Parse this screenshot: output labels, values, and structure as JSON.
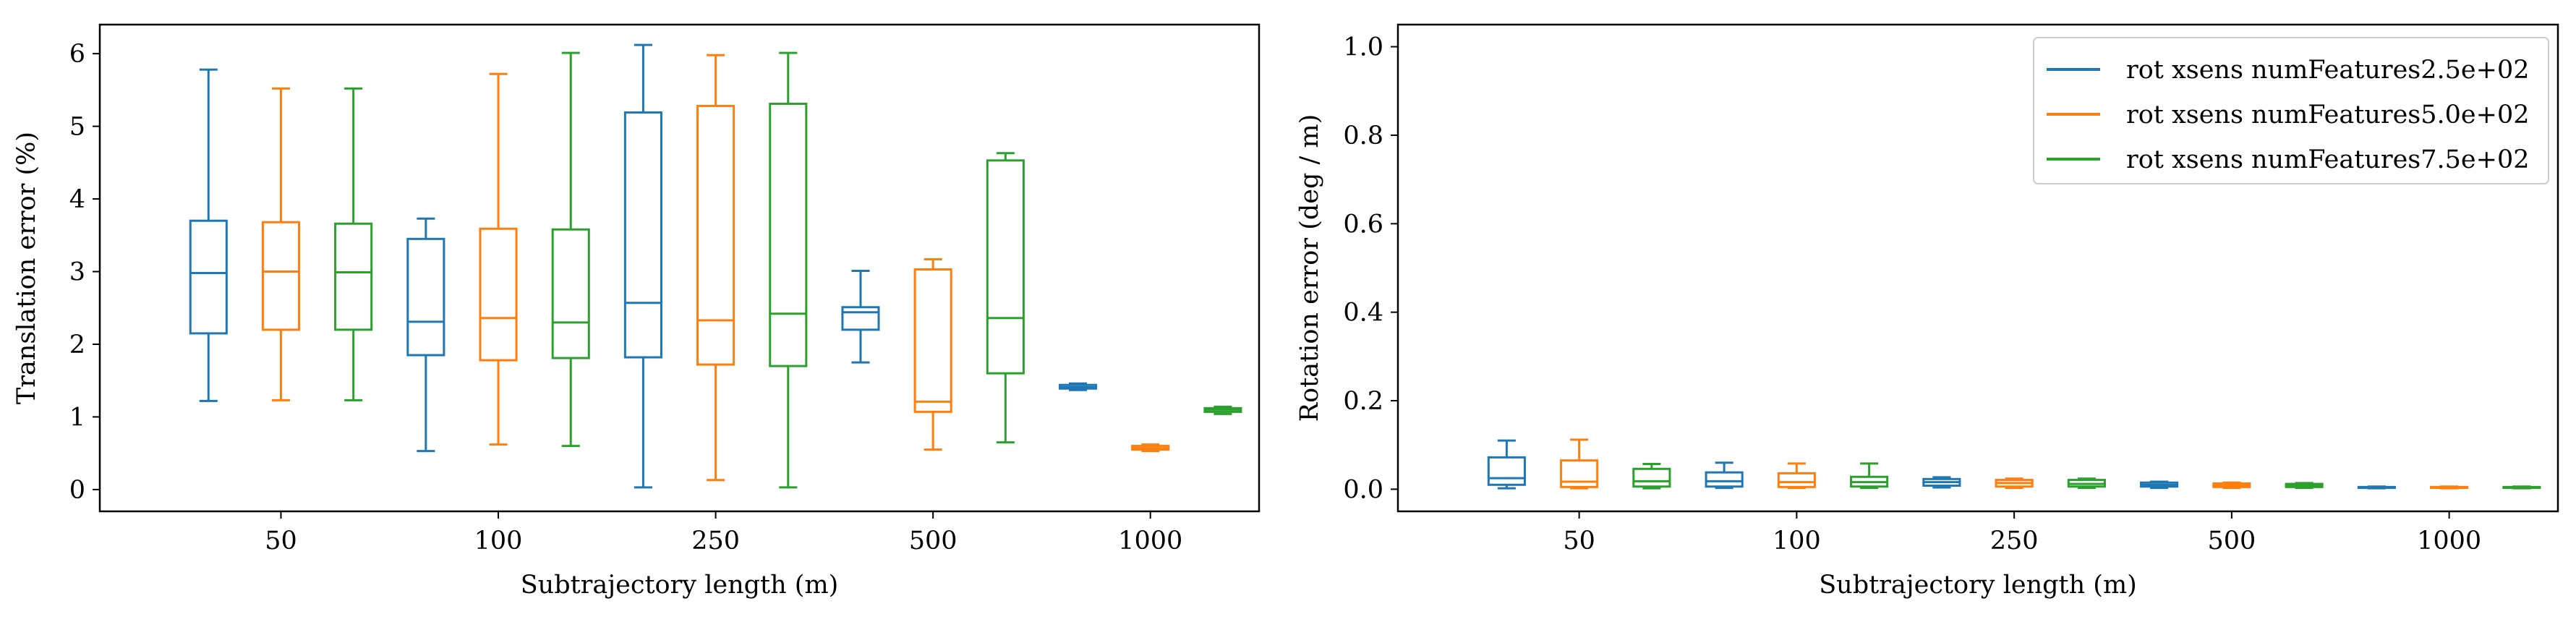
{
  "chart_data": [
    {
      "type": "box",
      "xlabel": "Subtrajectory length (m)",
      "ylabel": "Translation error (%)",
      "ylim": [
        -0.3,
        6.4
      ],
      "yticks": [
        0,
        1,
        2,
        3,
        4,
        5,
        6
      ],
      "categories": [
        "50",
        "100",
        "250",
        "500",
        "1000"
      ],
      "grid": false,
      "series": [
        {
          "color": "#1f77b4",
          "boxes": [
            {
              "whislo": 1.22,
              "q1": 2.15,
              "med": 2.98,
              "q3": 3.7,
              "whishi": 5.78
            },
            {
              "whislo": 0.53,
              "q1": 1.85,
              "med": 2.31,
              "q3": 3.45,
              "whishi": 3.73
            },
            {
              "whislo": 0.03,
              "q1": 1.82,
              "med": 2.57,
              "q3": 5.19,
              "whishi": 6.12
            },
            {
              "whislo": 1.75,
              "q1": 2.2,
              "med": 2.44,
              "q3": 2.51,
              "whishi": 3.01
            },
            {
              "whislo": 1.37,
              "q1": 1.39,
              "med": 1.41,
              "q3": 1.44,
              "whishi": 1.46
            }
          ]
        },
        {
          "color": "#ff7f0e",
          "boxes": [
            {
              "whislo": 1.23,
              "q1": 2.2,
              "med": 3.0,
              "q3": 3.68,
              "whishi": 5.52
            },
            {
              "whislo": 0.62,
              "q1": 1.78,
              "med": 2.36,
              "q3": 3.59,
              "whishi": 5.72
            },
            {
              "whislo": 0.13,
              "q1": 1.72,
              "med": 2.33,
              "q3": 5.28,
              "whishi": 5.98
            },
            {
              "whislo": 0.55,
              "q1": 1.07,
              "med": 1.21,
              "q3": 3.03,
              "whishi": 3.17
            },
            {
              "whislo": 0.53,
              "q1": 0.55,
              "med": 0.57,
              "q3": 0.6,
              "whishi": 0.62
            }
          ]
        },
        {
          "color": "#2ca02c",
          "boxes": [
            {
              "whislo": 1.23,
              "q1": 2.2,
              "med": 2.99,
              "q3": 3.66,
              "whishi": 5.52
            },
            {
              "whislo": 0.6,
              "q1": 1.81,
              "med": 2.3,
              "q3": 3.58,
              "whishi": 6.01
            },
            {
              "whislo": 0.03,
              "q1": 1.7,
              "med": 2.42,
              "q3": 5.31,
              "whishi": 6.01
            },
            {
              "whislo": 0.65,
              "q1": 1.6,
              "med": 2.36,
              "q3": 4.53,
              "whishi": 4.63
            },
            {
              "whislo": 1.04,
              "q1": 1.07,
              "med": 1.1,
              "q3": 1.12,
              "whishi": 1.14
            }
          ]
        }
      ]
    },
    {
      "type": "box",
      "xlabel": "Subtrajectory length (m)",
      "ylabel": "Rotation error (deg / m)",
      "ylim": [
        -0.05,
        1.05
      ],
      "yticks": [
        0.0,
        0.2,
        0.4,
        0.6,
        0.8,
        1.0
      ],
      "yticklabels": [
        "0.0",
        "0.2",
        "0.4",
        "0.6",
        "0.8",
        "1.0"
      ],
      "categories": [
        "50",
        "100",
        "250",
        "500",
        "1000"
      ],
      "grid": false,
      "legend": "top-right",
      "series": [
        {
          "name": "rot xsens numFeatures2.5e+02",
          "color": "#1f77b4",
          "boxes": [
            {
              "whislo": 0.002,
              "q1": 0.01,
              "med": 0.025,
              "q3": 0.072,
              "whishi": 0.11
            },
            {
              "whislo": 0.003,
              "q1": 0.006,
              "med": 0.018,
              "q3": 0.038,
              "whishi": 0.06
            },
            {
              "whislo": 0.004,
              "q1": 0.008,
              "med": 0.016,
              "q3": 0.023,
              "whishi": 0.027
            },
            {
              "whislo": 0.003,
              "q1": 0.006,
              "med": 0.01,
              "q3": 0.015,
              "whishi": 0.017
            },
            {
              "whislo": 0.002,
              "q1": 0.003,
              "med": 0.004,
              "q3": 0.005,
              "whishi": 0.006
            }
          ]
        },
        {
          "name": "rot xsens numFeatures5.0e+02",
          "color": "#ff7f0e",
          "boxes": [
            {
              "whislo": 0.002,
              "q1": 0.005,
              "med": 0.017,
              "q3": 0.065,
              "whishi": 0.112
            },
            {
              "whislo": 0.003,
              "q1": 0.005,
              "med": 0.016,
              "q3": 0.036,
              "whishi": 0.058
            },
            {
              "whislo": 0.003,
              "q1": 0.006,
              "med": 0.014,
              "q3": 0.021,
              "whishi": 0.024
            },
            {
              "whislo": 0.003,
              "q1": 0.005,
              "med": 0.009,
              "q3": 0.013,
              "whishi": 0.015
            },
            {
              "whislo": 0.002,
              "q1": 0.003,
              "med": 0.004,
              "q3": 0.005,
              "whishi": 0.006
            }
          ]
        },
        {
          "name": "rot xsens numFeatures7.5e+02",
          "color": "#2ca02c",
          "boxes": [
            {
              "whislo": 0.002,
              "q1": 0.006,
              "med": 0.018,
              "q3": 0.046,
              "whishi": 0.057
            },
            {
              "whislo": 0.003,
              "q1": 0.006,
              "med": 0.016,
              "q3": 0.028,
              "whishi": 0.058
            },
            {
              "whislo": 0.003,
              "q1": 0.006,
              "med": 0.012,
              "q3": 0.021,
              "whishi": 0.024
            },
            {
              "whislo": 0.003,
              "q1": 0.005,
              "med": 0.009,
              "q3": 0.012,
              "whishi": 0.014
            },
            {
              "whislo": 0.002,
              "q1": 0.003,
              "med": 0.004,
              "q3": 0.005,
              "whishi": 0.006
            }
          ]
        }
      ]
    }
  ]
}
